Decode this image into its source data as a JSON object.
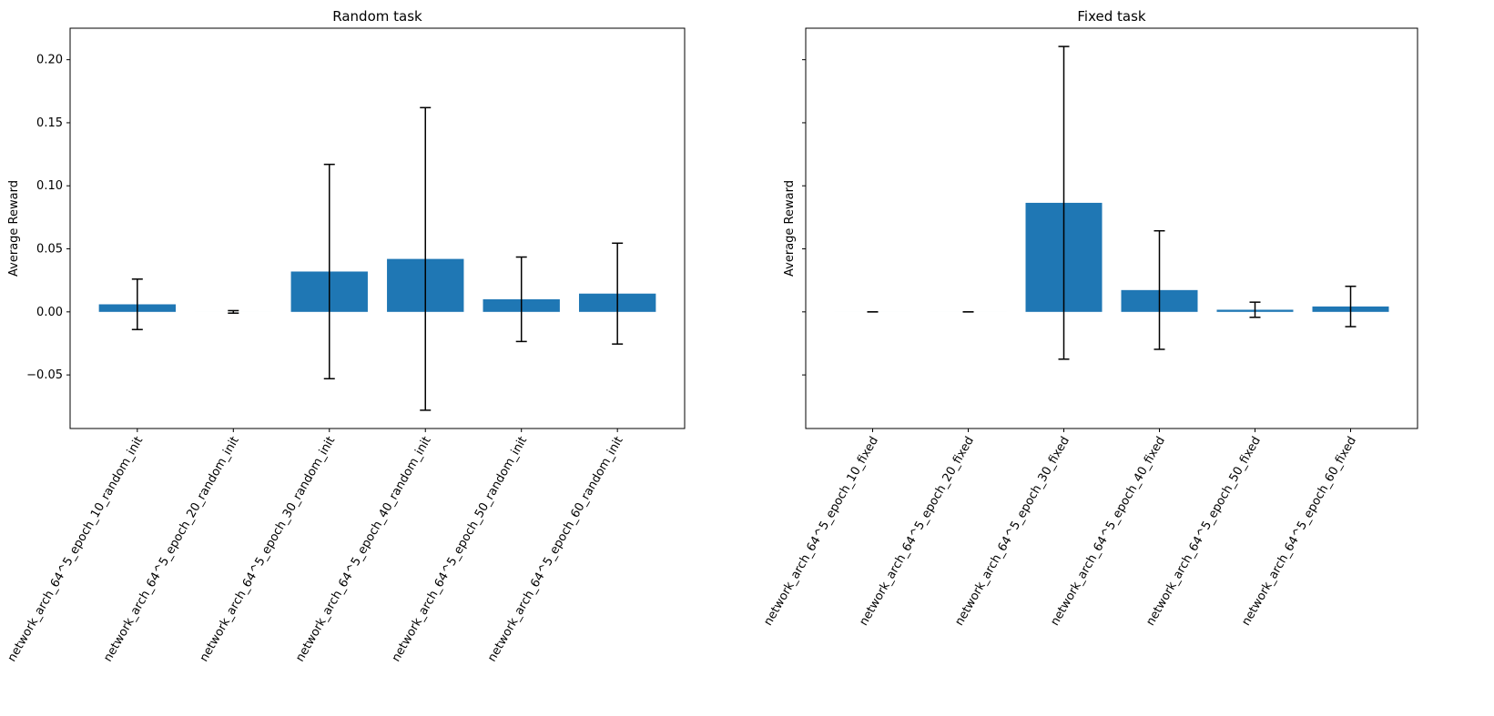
{
  "bar_color": "#1f77b4",
  "chart_data": [
    {
      "type": "bar",
      "title": "Random task",
      "xlabel": "",
      "ylabel": "Average Reward",
      "ylim": [
        -0.0925,
        0.225
      ],
      "yticks": [
        -0.05,
        0.0,
        0.05,
        0.1,
        0.15,
        0.2
      ],
      "ytick_labels": [
        "−0.05",
        "0.00",
        "0.05",
        "0.10",
        "0.15",
        "0.20"
      ],
      "grid": false,
      "categories": [
        "network_arch_64^5_epoch_10_random_init",
        "network_arch_64^5_epoch_20_random_init",
        "network_arch_64^5_epoch_30_random_init",
        "network_arch_64^5_epoch_40_random_init",
        "network_arch_64^5_epoch_50_random_init",
        "network_arch_64^5_epoch_60_random_init"
      ],
      "values": [
        0.006,
        0.0,
        0.032,
        0.042,
        0.01,
        0.0145
      ],
      "errors": [
        0.02,
        0.001,
        0.085,
        0.12,
        0.0335,
        0.04
      ]
    },
    {
      "type": "bar",
      "title": "Fixed task",
      "xlabel": "",
      "ylabel": "Average Reward",
      "ylim": [
        -0.0925,
        0.225
      ],
      "yticks": [
        -0.05,
        0.0,
        0.05,
        0.1,
        0.15,
        0.2
      ],
      "ytick_labels": [
        "",
        "",
        "",
        "",
        "",
        ""
      ],
      "sharey": true,
      "grid": false,
      "categories": [
        "network_arch_64^5_epoch_10_fixed",
        "network_arch_64^5_epoch_20_fixed",
        "network_arch_64^5_epoch_30_fixed",
        "network_arch_64^5_epoch_40_fixed",
        "network_arch_64^5_epoch_50_fixed",
        "network_arch_64^5_epoch_60_fixed"
      ],
      "values": [
        0.0,
        0.0,
        0.0865,
        0.0173,
        0.0017,
        0.0043
      ],
      "errors": [
        0.0,
        0.0,
        0.124,
        0.047,
        0.006,
        0.016
      ]
    }
  ]
}
